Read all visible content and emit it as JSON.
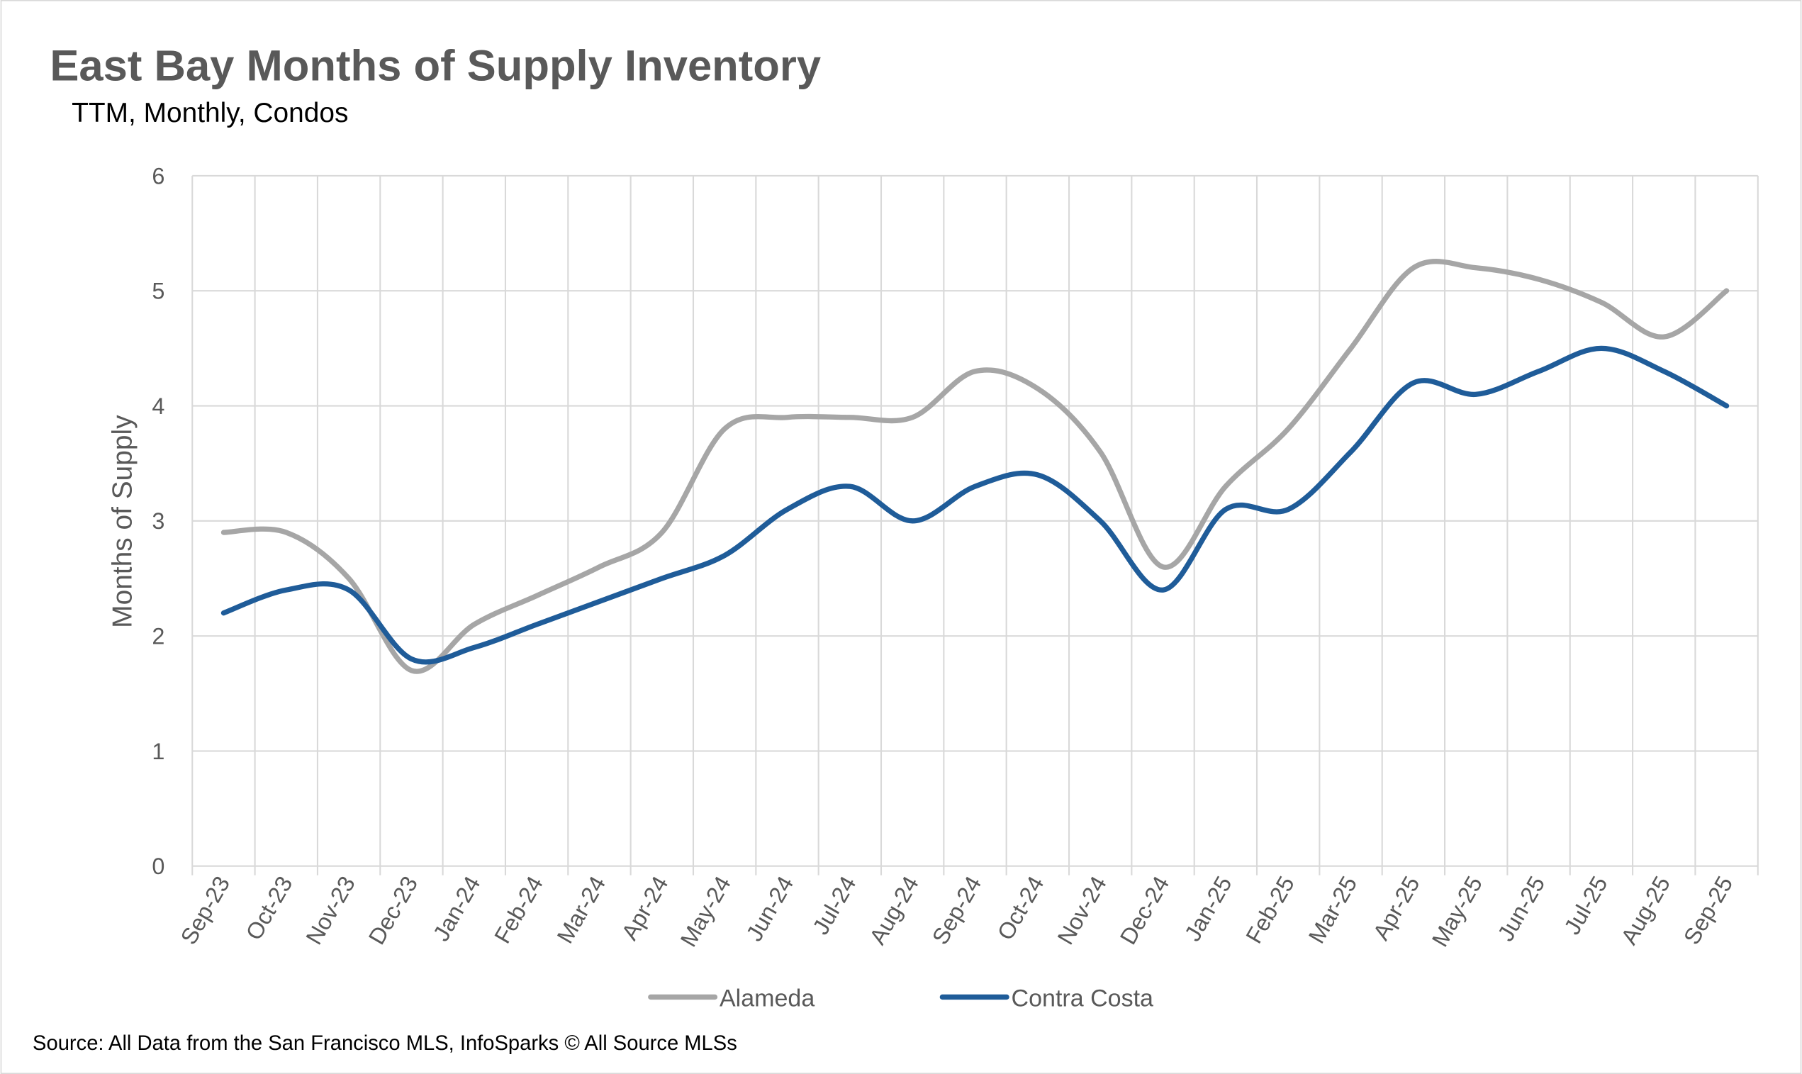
{
  "chart_data": {
    "type": "line",
    "title": "East Bay Months of Supply Inventory",
    "subtitle": "TTM, Monthly, Condos",
    "xlabel": "",
    "ylabel": "Months of Supply",
    "ylim": [
      0,
      6
    ],
    "yticks": [
      "0",
      "1",
      "2",
      "3",
      "4",
      "5",
      "6"
    ],
    "grid": true,
    "smooth": true,
    "legend_position": "bottom",
    "categories": [
      "Sep-23",
      "Oct-23",
      "Nov-23",
      "Dec-23",
      "Jan-24",
      "Feb-24",
      "Mar-24",
      "Apr-24",
      "May-24",
      "Jun-24",
      "Jul-24",
      "Aug-24",
      "Sep-24",
      "Oct-24",
      "Nov-24",
      "Dec-24",
      "Jan-25",
      "Feb-25",
      "Mar-25",
      "Apr-25",
      "May-25",
      "Jun-25",
      "Jul-25",
      "Aug-25",
      "Sep-25"
    ],
    "series": [
      {
        "name": "Alameda",
        "color": "#a6a6a6",
        "values": [
          2.9,
          2.9,
          2.5,
          1.7,
          2.1,
          2.35,
          2.6,
          2.9,
          3.8,
          3.9,
          3.9,
          3.9,
          4.3,
          4.15,
          3.6,
          2.6,
          3.3,
          3.8,
          4.5,
          5.2,
          5.2,
          5.1,
          4.9,
          4.6,
          5.0
        ]
      },
      {
        "name": "Contra Costa",
        "color": "#1f5c99",
        "values": [
          2.2,
          2.4,
          2.4,
          1.8,
          1.9,
          2.1,
          2.3,
          2.5,
          2.7,
          3.1,
          3.3,
          3.0,
          3.3,
          3.4,
          3.0,
          2.4,
          3.1,
          3.1,
          3.6,
          4.2,
          4.1,
          4.3,
          4.5,
          4.3,
          4.0
        ]
      }
    ],
    "source": "Source: All Data from the San Francisco MLS, InfoSparks © All Source MLSs"
  }
}
